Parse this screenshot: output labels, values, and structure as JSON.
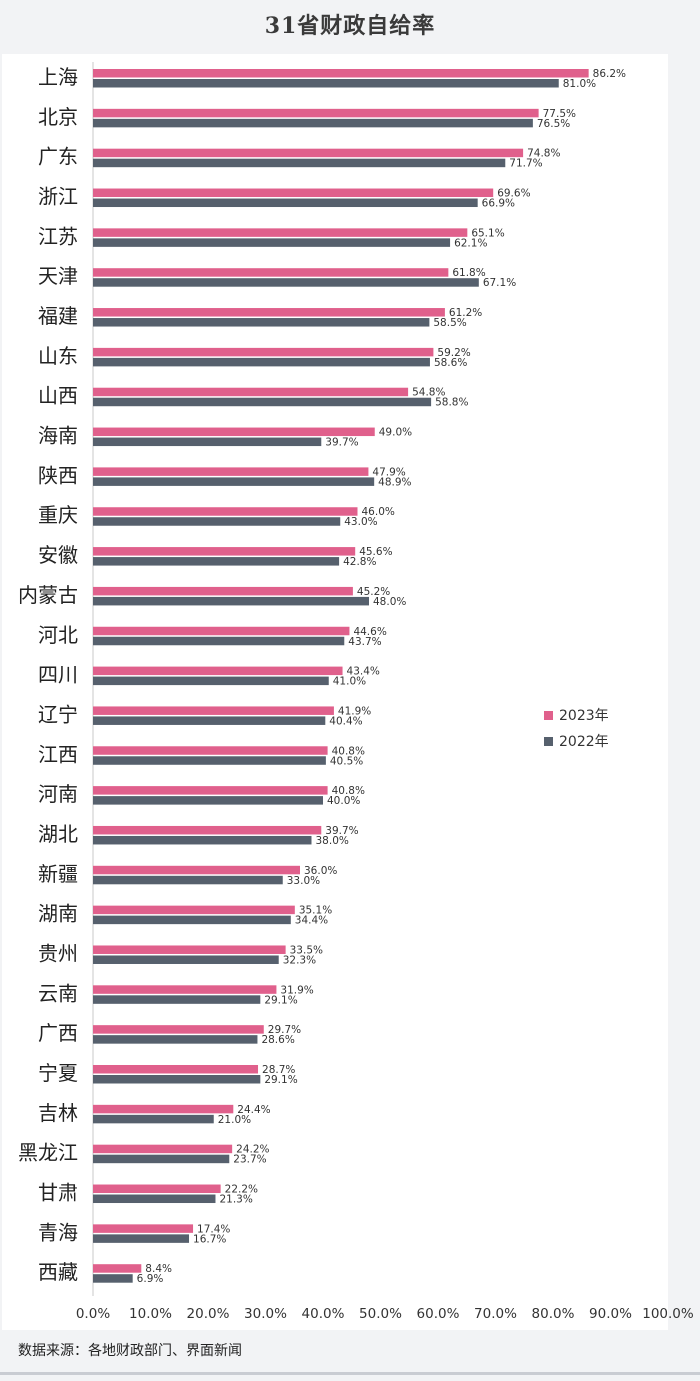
{
  "chart_data": {
    "type": "bar",
    "orientation": "horizontal",
    "title": "31省财政自给率",
    "categories": [
      "上海",
      "北京",
      "广东",
      "浙江",
      "江苏",
      "天津",
      "福建",
      "山东",
      "山西",
      "海南",
      "陕西",
      "重庆",
      "安徽",
      "内蒙古",
      "河北",
      "四川",
      "辽宁",
      "江西",
      "河南",
      "湖北",
      "新疆",
      "湖南",
      "贵州",
      "云南",
      "广西",
      "宁夏",
      "吉林",
      "黑龙江",
      "甘肃",
      "青海",
      "西藏"
    ],
    "series": [
      {
        "name": "2023年",
        "color": "#e0608c",
        "values": [
          86.2,
          77.5,
          74.8,
          69.6,
          65.1,
          61.8,
          61.2,
          59.2,
          54.8,
          49.0,
          47.9,
          46.0,
          45.6,
          45.2,
          44.6,
          43.4,
          41.9,
          40.8,
          40.8,
          39.7,
          36.0,
          35.1,
          33.5,
          31.9,
          29.7,
          28.7,
          24.4,
          24.2,
          22.2,
          17.4,
          8.4
        ],
        "labels": [
          "86.2%",
          "77.5%",
          "74.8%",
          "69.6%",
          "65.1%",
          "61.8%",
          "61.2%",
          "59.2%",
          "54.8%",
          "49.0%",
          "47.9%",
          "46.0%",
          "45.6%",
          "45.2%",
          "44.6%",
          "43.4%",
          "41.9%",
          "40.8%",
          "40.8%",
          "39.7%",
          "36.0%",
          "35.1%",
          "33.5%",
          "31.9%",
          "29.7%",
          "28.7%",
          "24.4%",
          "24.2%",
          "22.2%",
          "17.4%",
          "8.4%"
        ]
      },
      {
        "name": "2022年",
        "color": "#56606d",
        "values": [
          81.0,
          76.5,
          71.7,
          66.9,
          62.1,
          67.1,
          58.5,
          58.6,
          58.8,
          39.7,
          48.9,
          43.0,
          42.8,
          48.0,
          43.7,
          41.0,
          40.4,
          40.5,
          40.0,
          38.0,
          33.0,
          34.4,
          32.3,
          29.1,
          28.6,
          29.1,
          21.0,
          23.7,
          21.3,
          16.7,
          6.9
        ],
        "labels": [
          "81.0%",
          "76.5%",
          "71.7%",
          "66.9%",
          "62.1%",
          "67.1%",
          "58.5%",
          "58.6%",
          "58.8%",
          "39.7%",
          "48.9%",
          "43.0%",
          "42.8%",
          "48.0%",
          "43.7%",
          "41.0%",
          "40.4%",
          "40.5%",
          "40.0%",
          "38.0%",
          "33.0%",
          "34.4%",
          "32.3%",
          "29.1%",
          "28.6%",
          "29.1%",
          "21.0%",
          "23.7%",
          "21.3%",
          "16.7%",
          "6.9%"
        ]
      }
    ],
    "xlim": [
      0,
      100
    ],
    "xticks": [
      "0.0%",
      "10.0%",
      "20.0%",
      "30.0%",
      "40.0%",
      "50.0%",
      "60.0%",
      "70.0%",
      "80.0%",
      "90.0%",
      "100.0%"
    ],
    "grid": false,
    "legend_position": "right"
  },
  "source_note": "数据来源：各地财政部门、界面新闻"
}
